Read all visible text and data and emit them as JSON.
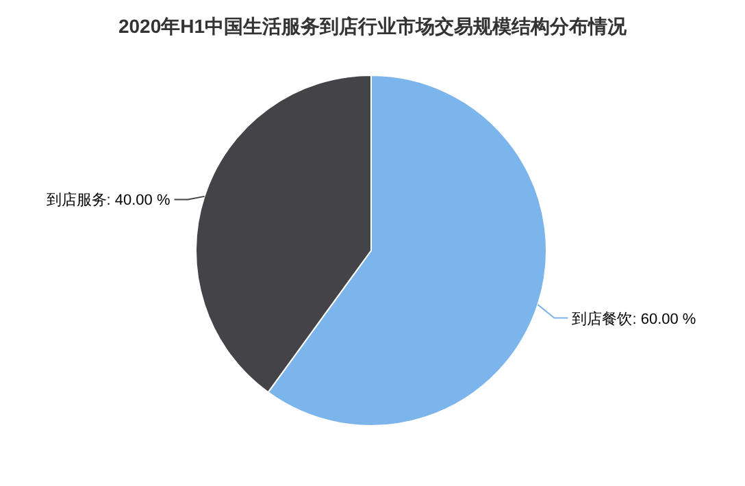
{
  "chart_data": {
    "type": "pie",
    "title": "2020年H1中国生活服务到店行业市场交易规模结构分布情况",
    "categories": [
      "到店餐饮",
      "到店服务"
    ],
    "values": [
      60,
      40
    ],
    "colors": [
      "#7cb5ec",
      "#434348"
    ],
    "value_labels": [
      "60.00 %",
      "40.00 %"
    ]
  }
}
